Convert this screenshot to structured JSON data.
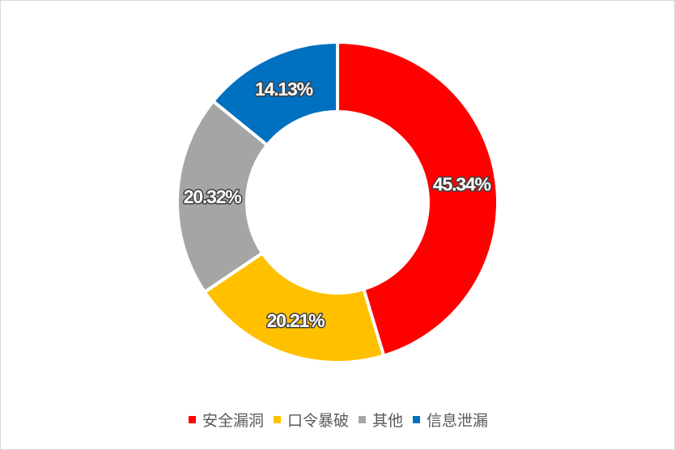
{
  "chart_data": {
    "type": "pie",
    "style": "donut",
    "categories": [
      "安全漏洞",
      "口令暴破",
      "其他",
      "信息泄漏"
    ],
    "values": [
      45.34,
      20.21,
      20.32,
      14.13
    ],
    "labels": [
      "45.34%",
      "20.21%",
      "20.32%",
      "14.13%"
    ],
    "colors": [
      "#ff0000",
      "#ffc000",
      "#a5a5a5",
      "#0070c0"
    ],
    "legend_position": "bottom"
  }
}
